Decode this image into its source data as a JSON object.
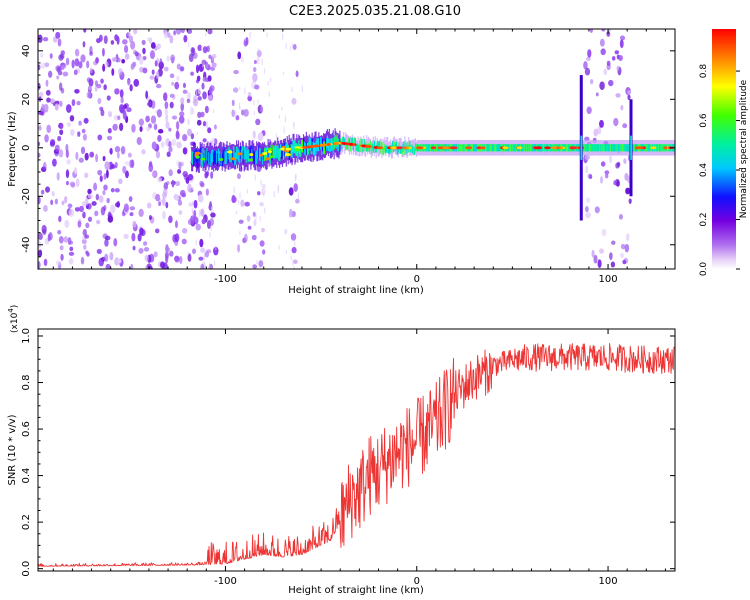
{
  "title": "C2E3.2025.035.21.08.G10",
  "chart_data": [
    {
      "type": "heatmap",
      "xlabel": "Height of straight line (km)",
      "ylabel": "Frequency (Hz)",
      "xlim": [
        -198,
        135
      ],
      "ylim": [
        -50,
        49
      ],
      "xticks": [
        -100,
        0,
        100
      ],
      "yticks": [
        -40,
        -20,
        0,
        20,
        40
      ],
      "colorbar": {
        "label": "Normalized spectral amplitude",
        "range": [
          0,
          0.97
        ],
        "ticks": [
          0.0,
          0.2,
          0.4,
          0.6,
          0.8
        ],
        "tick_labels": [
          "0.0",
          "0.2",
          "0.4",
          "0.6",
          "0.8"
        ]
      },
      "features": {
        "carrier_line_x": [
          -118,
          135
        ],
        "carrier_center_hz": [
          [
            -118,
            -4
          ],
          [
            -80,
            -3
          ],
          [
            -60,
            0
          ],
          [
            -40,
            2
          ],
          [
            -20,
            0
          ],
          [
            0,
            0
          ],
          [
            50,
            0
          ],
          [
            86,
            0
          ],
          [
            110,
            0
          ],
          [
            135,
            0
          ]
        ],
        "noise_regions_x": [
          [
            -198,
            -105
          ],
          [
            -96,
            -80
          ],
          [
            -66,
            -62
          ],
          [
            88,
            112
          ]
        ],
        "spikes_x": [
          86,
          112
        ]
      }
    },
    {
      "type": "line",
      "xlabel": "Height of straight line (km)",
      "ylabel": "SNR (10 * v/v)",
      "y_scale_label": "(x10",
      "y_scale_exp": "4",
      "xlim": [
        -198,
        135
      ],
      "ylim": [
        -0.01,
        1.03
      ],
      "xticks": [
        -100,
        0,
        100
      ],
      "yticks": [
        0.0,
        0.2,
        0.4,
        0.6,
        0.8,
        1.0
      ],
      "ytick_labels": [
        "0.0",
        "0.2",
        "0.4",
        "0.6",
        "0.8",
        "1.0"
      ],
      "series": [
        {
          "color": "#ee3333",
          "trend_x": [
            -198,
            -120,
            -100,
            -90,
            -80,
            -70,
            -60,
            -50,
            -45,
            -40,
            -35,
            -30,
            -25,
            -20,
            -10,
            0,
            10,
            20,
            30,
            40,
            50,
            60,
            80,
            100,
            120,
            135
          ],
          "trend_y": [
            0.01,
            0.015,
            0.02,
            0.04,
            0.06,
            0.05,
            0.06,
            0.1,
            0.12,
            0.2,
            0.3,
            0.33,
            0.4,
            0.42,
            0.5,
            0.55,
            0.62,
            0.75,
            0.82,
            0.86,
            0.88,
            0.89,
            0.89,
            0.89,
            0.88,
            0.88
          ]
        }
      ]
    }
  ]
}
